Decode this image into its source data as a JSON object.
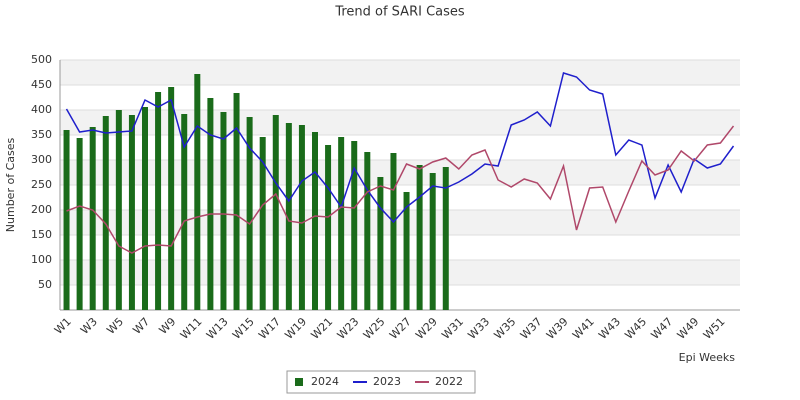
{
  "chart_data": {
    "type": "combo",
    "title": "Trend of SARI Cases",
    "x_label": "Epi Weeks",
    "y_label": "Number of Cases",
    "categories": [
      "W1",
      null,
      "W3",
      null,
      "W5",
      null,
      "W7",
      null,
      "W9",
      null,
      "W11",
      null,
      "W13",
      null,
      "W15",
      null,
      "W17",
      null,
      "W19",
      null,
      "W21",
      null,
      "W23",
      null,
      "W25",
      null,
      "W27",
      null,
      "W29",
      null,
      "W31",
      null,
      "W33",
      null,
      "W35",
      null,
      "W37",
      null,
      "W39",
      null,
      "W41",
      null,
      "W43",
      null,
      "W45",
      null,
      "W47",
      null,
      "W49",
      null,
      "W51",
      null
    ],
    "ylim": [
      0,
      500
    ],
    "yticks": [
      50,
      100,
      150,
      200,
      250,
      300,
      350,
      400,
      450,
      500
    ],
    "grid": true,
    "legend": "bottom",
    "series": [
      {
        "name": "2024",
        "type": "bar",
        "color": "#1a6b1a",
        "values": [
          360,
          344,
          366,
          388,
          400,
          390,
          406,
          436,
          446,
          392,
          472,
          424,
          396,
          434,
          386,
          346,
          390,
          374,
          370,
          356,
          330,
          346,
          338,
          316,
          266,
          314,
          236,
          290,
          274,
          286,
          null,
          null,
          null,
          null,
          null,
          null,
          null,
          null,
          null,
          null,
          null,
          null,
          null,
          null,
          null,
          null,
          null,
          null,
          null,
          null,
          null,
          null
        ]
      },
      {
        "name": "2023",
        "type": "line",
        "color": "#1f1fcc",
        "values": [
          402,
          356,
          360,
          354,
          356,
          358,
          420,
          406,
          420,
          326,
          368,
          350,
          342,
          364,
          324,
          296,
          254,
          218,
          258,
          276,
          244,
          206,
          284,
          240,
          204,
          176,
          206,
          226,
          248,
          244,
          256,
          272,
          292,
          288,
          370,
          380,
          396,
          368,
          474,
          466,
          440,
          432,
          310,
          340,
          330,
          224,
          290,
          236,
          302,
          284,
          292,
          328
        ]
      },
      {
        "name": "2022",
        "type": "line",
        "color": "#b0486a",
        "values": [
          198,
          208,
          200,
          172,
          128,
          114,
          128,
          130,
          128,
          178,
          186,
          192,
          192,
          190,
          172,
          210,
          232,
          178,
          174,
          188,
          186,
          206,
          204,
          236,
          248,
          240,
          292,
          282,
          296,
          304,
          282,
          310,
          320,
          260,
          246,
          262,
          254,
          222,
          288,
          160,
          244,
          246,
          176,
          238,
          298,
          270,
          280,
          318,
          298,
          330,
          334,
          368
        ]
      }
    ]
  }
}
